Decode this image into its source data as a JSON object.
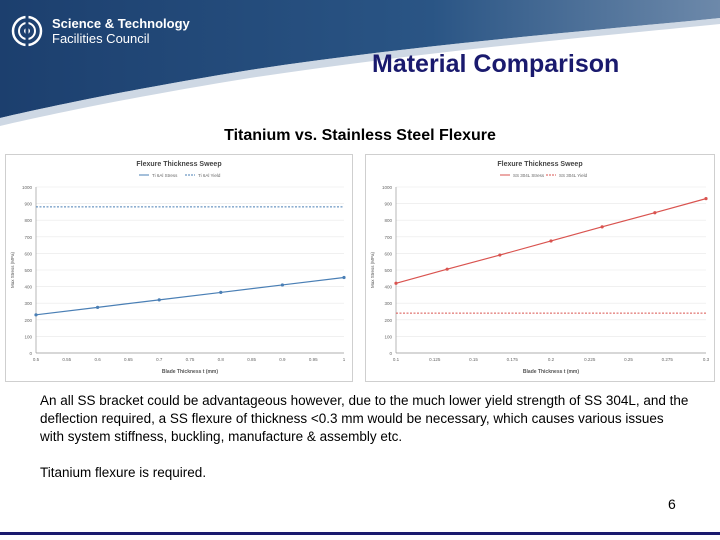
{
  "header": {
    "logo_line1": "Science & Technology",
    "logo_line2": "Facilities Council",
    "title": "Material Comparison",
    "colors": {
      "band": "#1c3f6e",
      "title": "#1a1a6e"
    }
  },
  "subtitle": "Titanium vs. Stainless Steel Flexure",
  "chart_data": [
    {
      "type": "line",
      "title": "Flexure Thickness Sweep",
      "xlabel": "Blade Thickness t (mm)",
      "ylabel": "Max Stress (MPa)",
      "x_ticks": [
        "0.5",
        "0.55",
        "0.6",
        "0.65",
        "0.7",
        "0.75",
        "0.8",
        "0.85",
        "0.9",
        "0.95",
        "1"
      ],
      "y_ticks": [
        "0",
        "100",
        "200",
        "300",
        "400",
        "500",
        "600",
        "700",
        "800",
        "900",
        "1000"
      ],
      "xlim": [
        0.5,
        1.0
      ],
      "ylim": [
        0,
        1000
      ],
      "legend": [
        "Ti 6Al Stress",
        "Ti 6Al Yield"
      ],
      "series": [
        {
          "name": "Ti 6Al Stress",
          "color": "#4a7fb5",
          "x": [
            0.5,
            0.6,
            0.7,
            0.8,
            0.9,
            1.0
          ],
          "values": [
            230,
            275,
            320,
            365,
            410,
            455
          ]
        },
        {
          "name": "Ti 6Al Yield",
          "color": "#4a7fb5",
          "dashed": true,
          "x": [
            0.5,
            1.0
          ],
          "values": [
            880,
            880
          ]
        }
      ]
    },
    {
      "type": "line",
      "title": "Flexure Thickness Sweep",
      "xlabel": "Blade Thickness t (mm)",
      "ylabel": "Max Stress (MPa)",
      "x_ticks": [
        "0.1",
        "0.125",
        "0.15",
        "0.175",
        "0.2",
        "0.225",
        "0.25",
        "0.275",
        "0.3"
      ],
      "y_ticks": [
        "0",
        "100",
        "200",
        "300",
        "400",
        "500",
        "600",
        "700",
        "800",
        "900",
        "1000"
      ],
      "xlim": [
        0.1,
        0.3
      ],
      "ylim": [
        0,
        1000
      ],
      "legend": [
        "SS 304L Stress",
        "SS 304L Yield"
      ],
      "series": [
        {
          "name": "SS 304L Stress",
          "color": "#d9534f",
          "x": [
            0.1,
            0.133,
            0.167,
            0.2,
            0.233,
            0.267,
            0.3
          ],
          "values": [
            420,
            505,
            590,
            675,
            760,
            845,
            930
          ]
        },
        {
          "name": "SS 304L Yield",
          "color": "#d9534f",
          "dashed": true,
          "x": [
            0.1,
            0.3
          ],
          "values": [
            240,
            240
          ]
        }
      ]
    }
  ],
  "body": {
    "paragraph1": "An all SS bracket could be advantageous however, due to the much lower yield strength of SS 304L, and the deflection required, a SS flexure of thickness <0.3 mm would be necessary, which causes various issues with system stiffness, buckling, manufacture & assembly etc.",
    "paragraph2": "Titanium flexure is required."
  },
  "page_number": "6"
}
